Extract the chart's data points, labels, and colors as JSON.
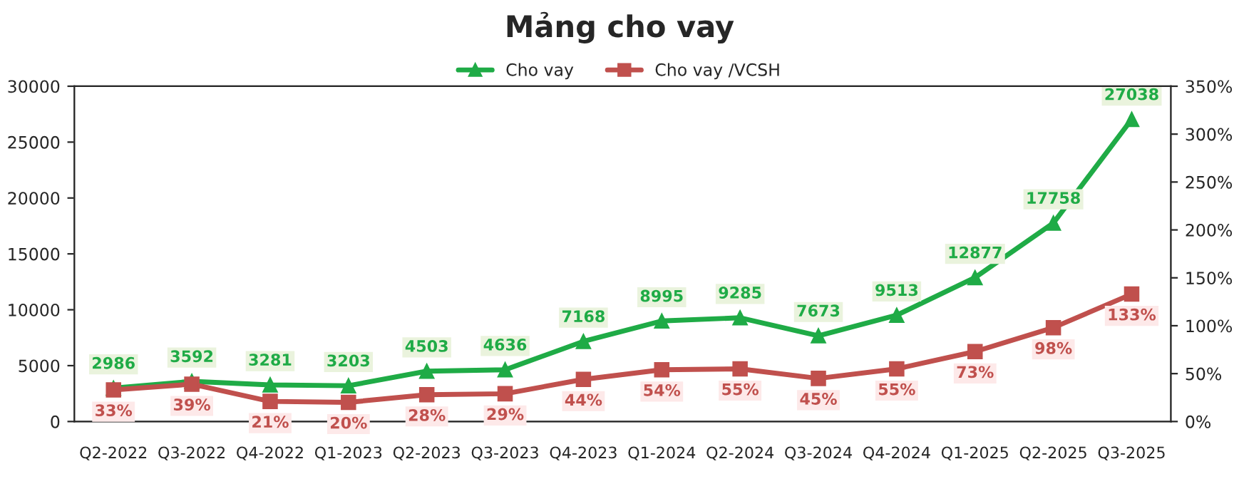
{
  "chart_data": {
    "type": "line",
    "title": "Mảng cho vay",
    "categories": [
      "Q2-2022",
      "Q3-2022",
      "Q4-2022",
      "Q1-2023",
      "Q2-2023",
      "Q3-2023",
      "Q4-2023",
      "Q1-2024",
      "Q2-2024",
      "Q3-2024",
      "Q4-2024",
      "Q1-2025",
      "Q2-2025",
      "Q3-2025"
    ],
    "series": [
      {
        "name": "Cho vay",
        "color": "#1fab46",
        "marker": "triangle",
        "values": [
          2986,
          3592,
          3281,
          3203,
          4503,
          4636,
          7168,
          8995,
          9285,
          7673,
          9513,
          12877,
          17758,
          27038
        ],
        "value_labels": [
          "2986",
          "3592",
          "3281",
          "3203",
          "4503",
          "4636",
          "7168",
          "8995",
          "9285",
          "7673",
          "9513",
          "12877",
          "17758",
          "27038"
        ]
      },
      {
        "name": "Cho vay /VCSH",
        "color": "#c0504d",
        "marker": "square",
        "axis": "y2",
        "values": [
          33,
          39,
          21,
          20,
          28,
          29,
          44,
          54,
          55,
          45,
          55,
          73,
          98,
          133
        ],
        "value_labels": [
          "33%",
          "39%",
          "21%",
          "20%",
          "28%",
          "29%",
          "44%",
          "54%",
          "55%",
          "45%",
          "55%",
          "73%",
          "98%",
          "133%"
        ]
      }
    ],
    "ylim": [
      0,
      30000
    ],
    "yticks": [
      0,
      5000,
      10000,
      15000,
      20000,
      25000,
      30000
    ],
    "y2lim": [
      0,
      350
    ],
    "y2ticks": [
      {
        "value": 0,
        "label": "0%"
      },
      {
        "value": 50,
        "label": "50%"
      },
      {
        "value": 100,
        "label": "100%"
      },
      {
        "value": 150,
        "label": "150%"
      },
      {
        "value": 200,
        "label": "200%"
      },
      {
        "value": 250,
        "label": "250%"
      },
      {
        "value": 300,
        "label": "300%"
      },
      {
        "value": 350,
        "label": "350%"
      }
    ],
    "legend": "top",
    "grid": false
  }
}
